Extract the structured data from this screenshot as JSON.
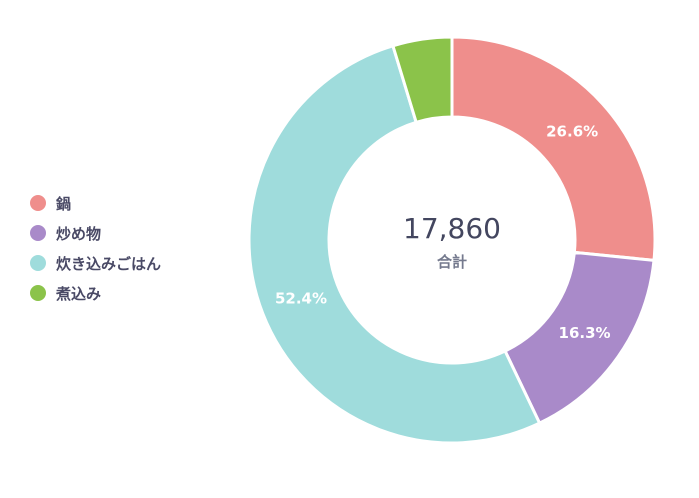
{
  "chart_data": {
    "type": "pie",
    "donut": true,
    "categories": [
      "鍋",
      "炒め物",
      "炊き込みごはん",
      "煮込み"
    ],
    "values": [
      26.6,
      16.3,
      52.4,
      4.7
    ],
    "labels": [
      "26.6%",
      "16.3%",
      "52.4%",
      ""
    ],
    "colors": [
      "#ef8e8c",
      "#a98ac9",
      "#9fdcdc",
      "#8bc34a"
    ],
    "center_value": "17,860",
    "center_label": "合計",
    "legend_position": "left"
  }
}
